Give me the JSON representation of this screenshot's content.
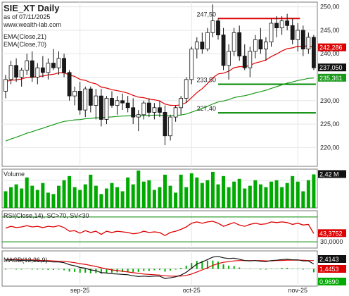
{
  "chart_data": {
    "type": "candlestick",
    "title": "SIE_XT Daily",
    "subtitle": "as of 07/11/2025",
    "watermark": "www.wealth-lab.com",
    "indicators_legend": [
      "EMA(Close,21)",
      "EMA(Close,70)"
    ],
    "price_axis": {
      "ylim": [
        216,
        251
      ],
      "ticks": [
        "250,00",
        "245,00",
        "240,00",
        "235,00",
        "230,00",
        "225,00",
        "220,00"
      ]
    },
    "x_ticks": [
      "sep-25",
      "oct-25",
      "nov-25"
    ],
    "last_values": {
      "close": "237,050",
      "ema21": "242,286",
      "ema70": "235,361"
    },
    "colors": {
      "up": "#ffffff",
      "down": "#1a1a1a",
      "ema21": "#dd0000",
      "ema70": "#1a9a1a",
      "resistance": "#dd0000",
      "support": "#008800",
      "volume": "#00aa00",
      "rsi": "#dd0000",
      "macd": "#111111",
      "signal": "#dd0000",
      "hist": "#00aa00"
    },
    "levels": [
      {
        "label": "247,50",
        "value": 247.5,
        "color": "resistance"
      },
      {
        "label": "233,50",
        "value": 233.5,
        "color": "support"
      },
      {
        "label": "227,40",
        "value": 227.4,
        "color": "support"
      }
    ],
    "candles": [
      [
        232.0,
        235.5,
        230.5,
        234.5
      ],
      [
        234.5,
        238.5,
        233.5,
        237.5
      ],
      [
        237.5,
        239.0,
        234.0,
        235.0
      ],
      [
        235.0,
        237.0,
        233.0,
        236.5
      ],
      [
        236.5,
        240.0,
        235.5,
        238.5
      ],
      [
        238.5,
        240.5,
        234.0,
        235.0
      ],
      [
        235.0,
        238.0,
        233.5,
        237.0
      ],
      [
        237.0,
        239.5,
        235.0,
        236.0
      ],
      [
        236.0,
        239.0,
        234.5,
        238.0
      ],
      [
        238.0,
        241.0,
        236.5,
        237.0
      ],
      [
        237.0,
        240.5,
        235.5,
        239.0
      ],
      [
        239.0,
        240.0,
        235.0,
        236.0
      ],
      [
        236.0,
        236.5,
        230.0,
        231.0
      ],
      [
        231.0,
        233.0,
        229.0,
        232.0
      ],
      [
        232.0,
        234.0,
        227.0,
        228.0
      ],
      [
        228.0,
        233.0,
        226.5,
        232.5
      ],
      [
        232.5,
        233.0,
        227.5,
        229.0
      ],
      [
        229.0,
        232.5,
        226.0,
        231.0
      ],
      [
        231.0,
        232.5,
        224.5,
        226.0
      ],
      [
        226.0,
        231.0,
        225.0,
        230.5
      ],
      [
        230.5,
        232.0,
        228.5,
        229.0
      ],
      [
        229.0,
        231.0,
        227.0,
        230.0
      ],
      [
        230.0,
        231.5,
        228.0,
        229.5
      ],
      [
        229.5,
        231.0,
        227.5,
        228.5
      ],
      [
        228.5,
        230.5,
        225.0,
        226.5
      ],
      [
        226.5,
        228.0,
        223.5,
        227.0
      ],
      [
        227.0,
        230.0,
        226.0,
        229.5
      ],
      [
        229.5,
        230.5,
        226.5,
        227.5
      ],
      [
        227.5,
        229.5,
        226.0,
        228.5
      ],
      [
        228.5,
        230.0,
        226.5,
        227.5
      ],
      [
        227.5,
        229.0,
        220.5,
        222.5
      ],
      [
        222.5,
        227.0,
        221.5,
        226.5
      ],
      [
        226.5,
        229.0,
        225.5,
        228.5
      ],
      [
        228.5,
        231.0,
        227.0,
        230.5
      ],
      [
        230.5,
        235.0,
        229.5,
        234.5
      ],
      [
        234.5,
        241.5,
        233.5,
        241.0
      ],
      [
        241.0,
        243.5,
        239.0,
        242.5
      ],
      [
        242.5,
        244.5,
        240.0,
        241.0
      ],
      [
        241.0,
        245.5,
        240.5,
        244.5
      ],
      [
        244.5,
        250.5,
        243.5,
        247.0
      ],
      [
        247.0,
        247.5,
        243.0,
        244.0
      ],
      [
        244.0,
        245.5,
        236.5,
        237.5
      ],
      [
        237.5,
        242.0,
        234.5,
        240.5
      ],
      [
        240.5,
        245.5,
        239.5,
        244.5
      ],
      [
        244.5,
        246.0,
        238.5,
        239.5
      ],
      [
        239.5,
        242.0,
        236.5,
        237.0
      ],
      [
        237.0,
        241.5,
        235.0,
        240.5
      ],
      [
        240.5,
        244.0,
        239.0,
        243.0
      ],
      [
        243.0,
        245.5,
        240.0,
        241.0
      ],
      [
        241.0,
        243.5,
        238.5,
        242.5
      ],
      [
        242.5,
        247.5,
        241.5,
        246.5
      ],
      [
        246.5,
        248.0,
        243.5,
        245.5
      ],
      [
        245.5,
        248.0,
        244.0,
        247.0
      ],
      [
        247.0,
        248.5,
        245.0,
        246.0
      ],
      [
        246.0,
        247.5,
        242.0,
        243.0
      ],
      [
        243.0,
        246.5,
        240.5,
        245.0
      ],
      [
        245.0,
        246.0,
        239.5,
        241.0
      ],
      [
        241.0,
        244.5,
        240.0,
        243.5
      ],
      [
        243.5,
        244.0,
        236.5,
        237.0
      ]
    ],
    "volume_axis": {
      "ylim": [
        0,
        2.8
      ],
      "ticks": [
        "2,42 M"
      ],
      "label": "Volume"
    },
    "volume": [
      1.2,
      1.5,
      1.7,
      1.4,
      2.2,
      1.6,
      1.3,
      1.8,
      1.1,
      1.0,
      1.6,
      2.0,
      2.3,
      1.5,
      1.3,
      1.7,
      2.4,
      1.6,
      1.0,
      1.4,
      1.8,
      1.5,
      1.2,
      2.2,
      1.7,
      2.7,
      1.9,
      2.0,
      1.3,
      1.5,
      2.4,
      1.6,
      1.1,
      2.4,
      1.5,
      2.5,
      2.2,
      1.8,
      2.0,
      2.6,
      1.7,
      2.3,
      1.5,
      1.9,
      2.1,
      1.4,
      1.6,
      2.0,
      1.7,
      1.5,
      1.9,
      2.0,
      1.5,
      1.8,
      2.3,
      1.9,
      1.2,
      2.0,
      2.42
    ],
    "rsi_panel": {
      "label": "RSI(Close,14), SC>70, SV<30",
      "ylim": [
        20,
        80
      ],
      "ticks": [
        "43,3752",
        "30,0000"
      ],
      "upper": 70,
      "lower": 30
    },
    "rsi": [
      52,
      55,
      53,
      54,
      56,
      54,
      55,
      53,
      55,
      54,
      56,
      53,
      47,
      48,
      44,
      48,
      45,
      47,
      42,
      47,
      45,
      47,
      46,
      45,
      43,
      44,
      47,
      45,
      46,
      45,
      40,
      45,
      47,
      50,
      54,
      60,
      62,
      60,
      62,
      63,
      60,
      55,
      58,
      61,
      57,
      55,
      58,
      60,
      58,
      59,
      62,
      61,
      62,
      61,
      58,
      60,
      57,
      58,
      43.4
    ],
    "macd_panel": {
      "label": "MACD(12,26,9)",
      "ylim": [
        -5,
        5.2
      ],
      "ticks": [
        "2,4143",
        "1,4453",
        "0,9690"
      ]
    },
    "macd": [
      2.5,
      2.6,
      2.5,
      2.4,
      2.5,
      2.4,
      2.3,
      2.2,
      2.1,
      2.0,
      2.0,
      1.8,
      1.2,
      0.9,
      0.4,
      0.2,
      -0.3,
      -0.5,
      -1.1,
      -1.2,
      -1.4,
      -1.5,
      -1.6,
      -1.7,
      -2.0,
      -2.2,
      -2.1,
      -2.2,
      -2.1,
      -2.1,
      -2.8,
      -2.6,
      -2.3,
      -1.8,
      -1.0,
      0.2,
      1.4,
      2.0,
      2.7,
      3.4,
      3.6,
      3.2,
      3.0,
      3.1,
      2.8,
      2.4,
      2.3,
      2.4,
      2.2,
      2.1,
      2.4,
      2.5,
      2.7,
      2.8,
      2.6,
      2.6,
      2.3,
      2.3,
      1.4
    ],
    "macd_signal": [
      2.7,
      2.7,
      2.7,
      2.6,
      2.6,
      2.6,
      2.5,
      2.4,
      2.4,
      2.3,
      2.2,
      2.2,
      2.0,
      1.8,
      1.5,
      1.3,
      1.0,
      0.7,
      0.3,
      0.0,
      -0.3,
      -0.5,
      -0.7,
      -0.9,
      -1.1,
      -1.3,
      -1.5,
      -1.6,
      -1.7,
      -1.8,
      -2.0,
      -2.1,
      -2.1,
      -2.1,
      -1.9,
      -1.5,
      -0.9,
      -0.3,
      0.3,
      1.0,
      1.5,
      1.9,
      2.1,
      2.3,
      2.4,
      2.4,
      2.4,
      2.4,
      2.4,
      2.3,
      2.3,
      2.4,
      2.4,
      2.5,
      2.5,
      2.5,
      2.5,
      2.4,
      2.4
    ]
  }
}
